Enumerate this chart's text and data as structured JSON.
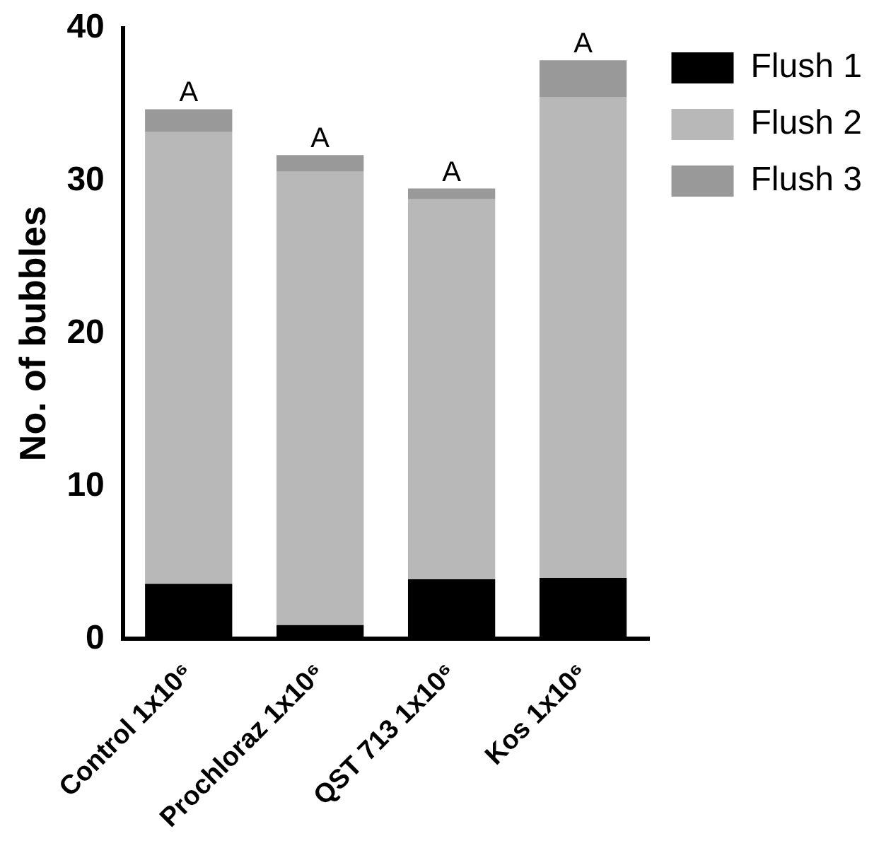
{
  "chart_data": {
    "type": "bar",
    "stacked": true,
    "ylabel": "No. of bubbles",
    "categories": [
      "Control 1x10⁶",
      "Prochloraz 1x10⁶",
      "QST 713 1x10⁶",
      "Kos 1x10⁶"
    ],
    "series": [
      {
        "name": "Flush 1",
        "color": "#000000",
        "values": [
          3.6,
          0.9,
          3.9,
          4.0
        ]
      },
      {
        "name": "Flush 2",
        "color": "#b8b8b8",
        "values": [
          29.6,
          29.7,
          24.9,
          31.5
        ]
      },
      {
        "name": "Flush 3",
        "color": "#999999",
        "values": [
          1.5,
          1.1,
          0.7,
          2.4
        ]
      }
    ],
    "ylim": [
      0,
      40
    ],
    "yticks": [
      0,
      10,
      20,
      30,
      40
    ],
    "grid": false,
    "legend": "top right",
    "annotations": [
      {
        "text": "A",
        "x": "Control 1x10⁶",
        "y": 34.7
      },
      {
        "text": "A",
        "x": "Prochloraz 1x10⁶",
        "y": 31.7
      },
      {
        "text": "A",
        "x": "QST 713 1x10⁶",
        "y": 29.5
      },
      {
        "text": "A",
        "x": "Kos 1x10⁶",
        "y": 37.9
      }
    ]
  }
}
